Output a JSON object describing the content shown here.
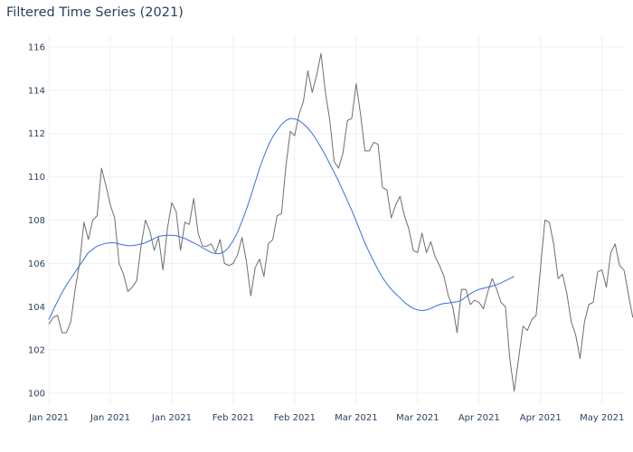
{
  "chart_data": {
    "type": "line",
    "title": "Filtered Time Series (2021)",
    "xlabel": "",
    "ylabel": "",
    "ylim": [
      99.5,
      116.5
    ],
    "yticks": [
      100,
      102,
      104,
      106,
      108,
      110,
      112,
      114,
      116
    ],
    "xtick_labels": [
      "Jan 2021",
      "Jan 2021",
      "Jan 2021",
      "Feb 2021",
      "Feb 2021",
      "Mar 2021",
      "Mar 2021",
      "Apr 2021",
      "Apr 2021",
      "May 2021"
    ],
    "xtick_dates": [
      "2021-01-03",
      "2021-01-17",
      "2021-01-31",
      "2021-02-14",
      "2021-02-28",
      "2021-03-14",
      "2021-03-28",
      "2021-04-11",
      "2021-04-25",
      "2021-05-09"
    ],
    "xlim": [
      "2021-01-03",
      "2021-05-14"
    ],
    "grid": true,
    "series": [
      {
        "color": "#6e6e6e",
        "start": "2021-01-03",
        "values": [
          103.2,
          103.5,
          103.6,
          102.8,
          102.8,
          103.3,
          104.8,
          106,
          107.9,
          107.1,
          108,
          108.2,
          110.4,
          109.6,
          108.7,
          108.1,
          106,
          105.5,
          104.7,
          104.9,
          105.2,
          106.8,
          108,
          107.5,
          106.6,
          107.2,
          105.7,
          107.6,
          108.8,
          108.4,
          106.6,
          107.9,
          107.8,
          109,
          107.4,
          106.8,
          106.8,
          106.9,
          106.5,
          107.1,
          106,
          105.9,
          106,
          106.4,
          107.2,
          106.1,
          104.5,
          105.8,
          106.2,
          105.4,
          106.9,
          107.1,
          108.2,
          108.3,
          110.5,
          112.1,
          111.9,
          112.9,
          113.5,
          114.9,
          113.9,
          114.7,
          115.7,
          113.9,
          112.6,
          110.7,
          110.4,
          111.1,
          112.6,
          112.7,
          114.3,
          112.9,
          111.2,
          111.2,
          111.6,
          111.5,
          109.5,
          109.4,
          108.1,
          108.7,
          109.1,
          108.2,
          107.6,
          106.6,
          106.5,
          107.4,
          106.5,
          107,
          106.3,
          105.9,
          105.4,
          104.5,
          104,
          102.8,
          104.8,
          104.8,
          104.1,
          104.3,
          104.2,
          103.9,
          104.7,
          105.3,
          104.8,
          104.2,
          104,
          101.6,
          100.1,
          101.6,
          103.1,
          102.9,
          103.4,
          103.6,
          105.8,
          108,
          107.9,
          106.9,
          105.3,
          105.5,
          104.6,
          103.3,
          102.7,
          101.6,
          103.3,
          104.1,
          104.2,
          105.6,
          105.7,
          104.9,
          106.5,
          106.9,
          105.9,
          105.7,
          104.6,
          103.5
        ]
      },
      {
        "color": "#3a6fe0",
        "start": "2021-01-03",
        "values": [
          103.4,
          103.85,
          104.25,
          104.65,
          105.0,
          105.3,
          105.6,
          105.9,
          106.2,
          106.5,
          106.65,
          106.8,
          106.87,
          106.93,
          106.95,
          106.95,
          106.9,
          106.85,
          106.82,
          106.82,
          106.85,
          106.9,
          106.95,
          107.05,
          107.15,
          107.25,
          107.28,
          107.3,
          107.3,
          107.28,
          107.22,
          107.15,
          107.05,
          106.95,
          106.85,
          106.72,
          106.62,
          106.5,
          106.45,
          106.45,
          106.55,
          106.75,
          107.05,
          107.45,
          107.95,
          108.5,
          109.1,
          109.75,
          110.4,
          110.95,
          111.45,
          111.85,
          112.15,
          112.42,
          112.6,
          112.7,
          112.68,
          112.6,
          112.45,
          112.25,
          112.0,
          111.7,
          111.35,
          111.0,
          110.6,
          110.2,
          109.8,
          109.35,
          108.9,
          108.45,
          107.95,
          107.45,
          106.95,
          106.5,
          106.1,
          105.7,
          105.35,
          105.05,
          104.8,
          104.6,
          104.4,
          104.2,
          104.05,
          103.92,
          103.85,
          103.82,
          103.85,
          103.92,
          104.02,
          104.1,
          104.15,
          104.17,
          104.2,
          104.23,
          104.3,
          104.45,
          104.6,
          104.72,
          104.8,
          104.85,
          104.9,
          104.95,
          105.02,
          105.1,
          105.2,
          105.3,
          105.4
        ]
      }
    ]
  }
}
